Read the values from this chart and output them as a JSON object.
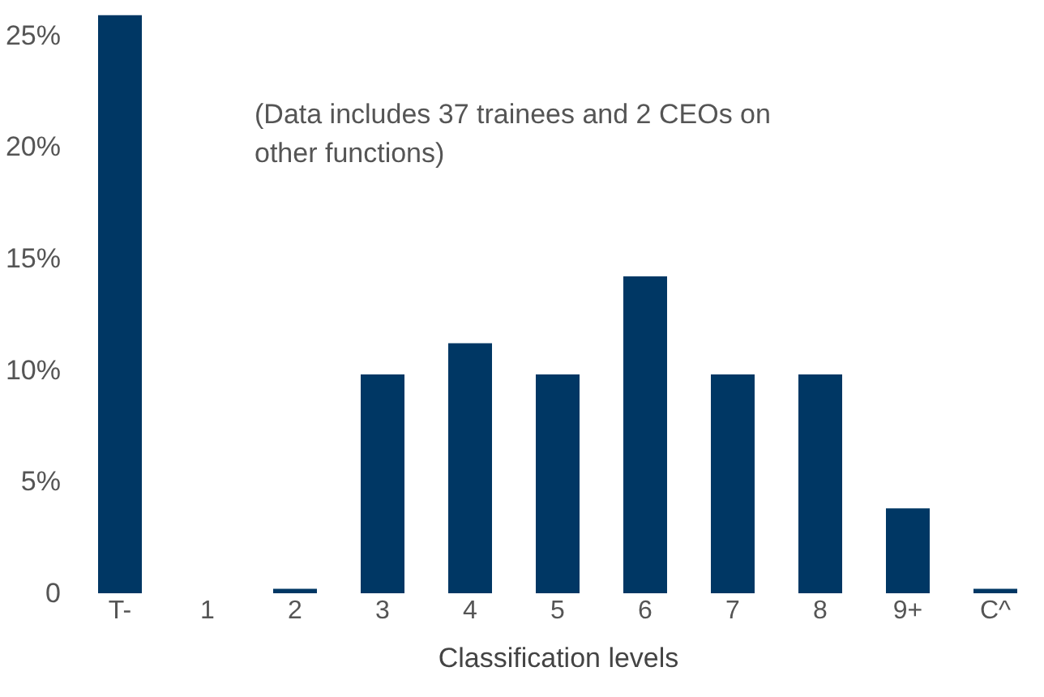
{
  "chart_data": {
    "type": "bar",
    "xlabel": "Classification levels",
    "categories": [
      "T-",
      "1",
      "2",
      "3",
      "4",
      "5",
      "6",
      "7",
      "8",
      "9+",
      "C^"
    ],
    "values": [
      25.9,
      0,
      0.2,
      9.8,
      11.2,
      9.8,
      14.2,
      9.8,
      9.8,
      3.8,
      0.2
    ],
    "color": "#003764",
    "ylim": [
      0,
      26
    ],
    "yticks": [
      0,
      {
        "value": 5,
        "label": "5%"
      },
      {
        "value": 10,
        "label": "10%"
      },
      {
        "value": 15,
        "label": "15%"
      },
      {
        "value": 20,
        "label": "20%"
      },
      {
        "value": 25,
        "label": "25%"
      }
    ],
    "annotations": [
      "(Data includes 37 trainees and 2 CEOs on\nother functions)"
    ],
    "grid": false
  }
}
